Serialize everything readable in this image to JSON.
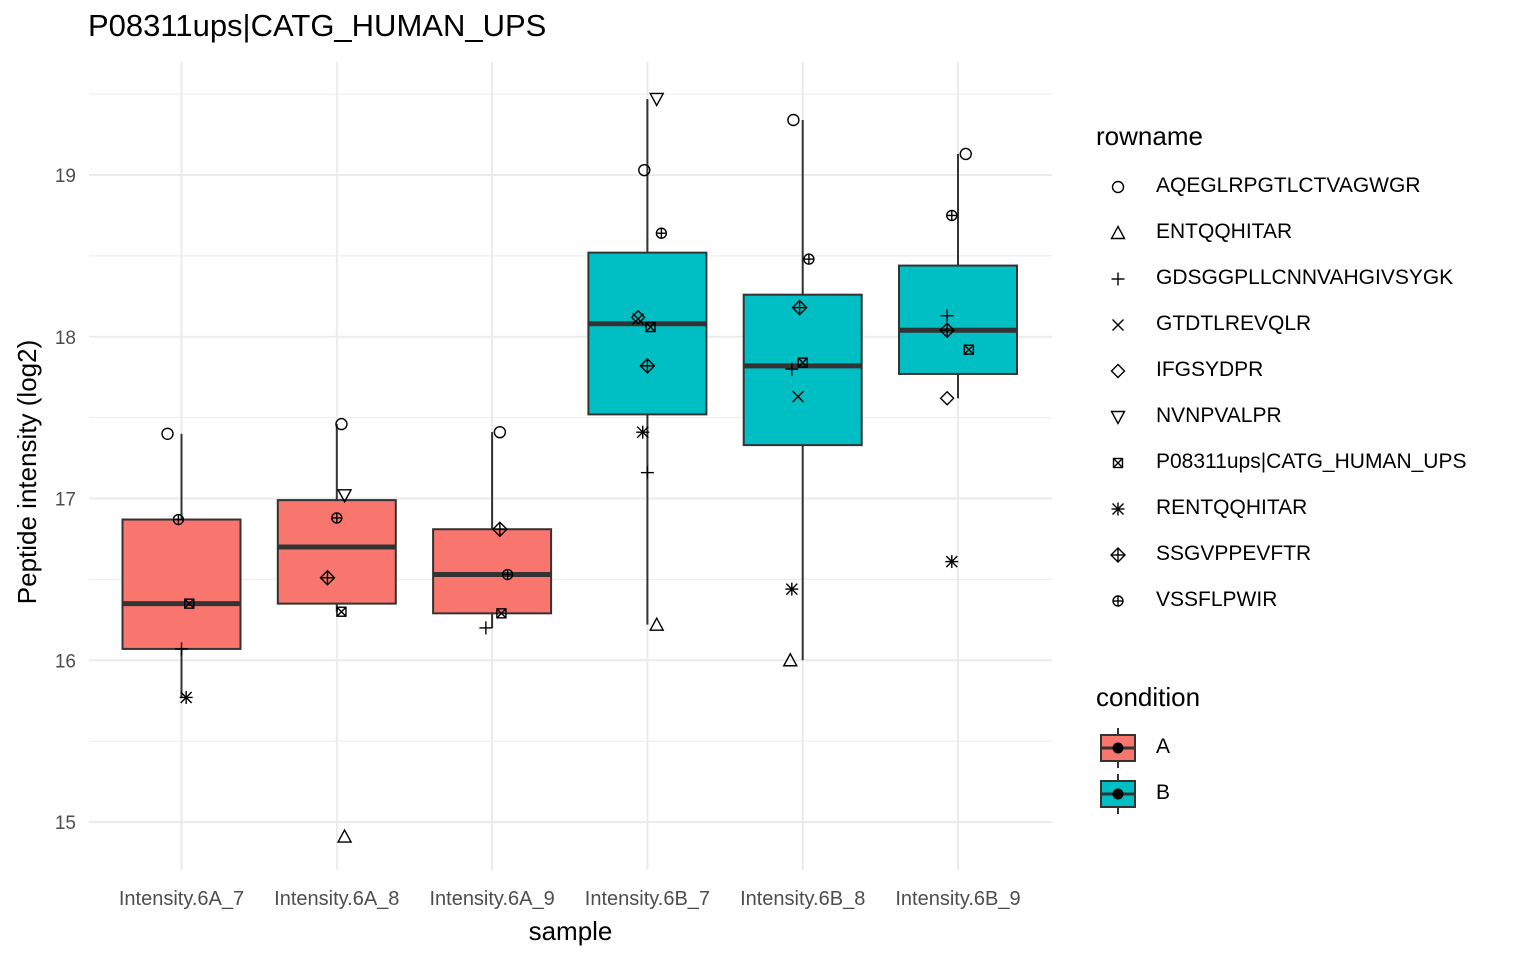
{
  "chart_data": {
    "type": "boxplot",
    "title": "P08311ups|CATG_HUMAN_UPS",
    "xlabel": "sample",
    "ylabel": "Peptide intensity (log2)",
    "ylim": [
      14.7,
      19.7
    ],
    "y_ticks": [
      "15",
      "16",
      "17",
      "18",
      "19"
    ],
    "grid": true,
    "legend_position": "right",
    "categories": [
      "Intensity.6A_7",
      "Intensity.6A_8",
      "Intensity.6A_9",
      "Intensity.6B_7",
      "Intensity.6B_8",
      "Intensity.6B_9"
    ],
    "condition": [
      "A",
      "A",
      "A",
      "B",
      "B",
      "B"
    ],
    "boxes": [
      {
        "whisker_low": 15.77,
        "q1": 16.07,
        "median": 16.35,
        "q3": 16.87,
        "whisker_high": 17.4
      },
      {
        "whisker_low": 16.3,
        "q1": 16.35,
        "median": 16.7,
        "q3": 16.99,
        "whisker_high": 17.46
      },
      {
        "whisker_low": 16.2,
        "q1": 16.29,
        "median": 16.53,
        "q3": 16.81,
        "whisker_high": 17.41
      },
      {
        "whisker_low": 16.22,
        "q1": 17.52,
        "median": 18.08,
        "q3": 18.52,
        "whisker_high": 19.47
      },
      {
        "whisker_low": 16.0,
        "q1": 17.33,
        "median": 17.82,
        "q3": 18.26,
        "whisker_high": 19.34
      },
      {
        "whisker_low": 17.62,
        "q1": 17.77,
        "median": 18.04,
        "q3": 18.44,
        "whisker_high": 19.13
      }
    ],
    "legend_rowname": {
      "title": "rowname",
      "entries": [
        {
          "name": "AQEGLRPGTLCTVAGWGR",
          "shape": "circle"
        },
        {
          "name": "ENTQQHITAR",
          "shape": "triangle-up"
        },
        {
          "name": "GDSGGPLLCNNVAHGIVSYGK",
          "shape": "plus"
        },
        {
          "name": "GTDTLREVQLR",
          "shape": "cross"
        },
        {
          "name": "IFGSYDPR",
          "shape": "diamond"
        },
        {
          "name": "NVNPVALPR",
          "shape": "triangle-down"
        },
        {
          "name": "P08311ups|CATG_HUMAN_UPS",
          "shape": "square-cross"
        },
        {
          "name": "RENTQQHITAR",
          "shape": "asterisk"
        },
        {
          "name": "SSGVPPEVFTR",
          "shape": "diamond-plus"
        },
        {
          "name": "VSSFLPWIR",
          "shape": "circle-plus"
        }
      ]
    },
    "legend_condition": {
      "title": "condition",
      "entries": [
        {
          "name": "A",
          "color": "#F8766D"
        },
        {
          "name": "B",
          "color": "#00BFC4"
        }
      ]
    },
    "points": [
      {
        "sample": 0,
        "dx": -0.09,
        "y": 17.4,
        "shape": "circle"
      },
      {
        "sample": 0,
        "dx": -0.02,
        "y": 16.87,
        "shape": "circle-plus"
      },
      {
        "sample": 0,
        "dx": 0.05,
        "y": 16.35,
        "shape": "square-cross"
      },
      {
        "sample": 0,
        "dx": 0.0,
        "y": 16.07,
        "shape": "plus"
      },
      {
        "sample": 0,
        "dx": 0.03,
        "y": 15.77,
        "shape": "asterisk"
      },
      {
        "sample": 1,
        "dx": 0.03,
        "y": 17.46,
        "shape": "circle"
      },
      {
        "sample": 1,
        "dx": 0.05,
        "y": 17.02,
        "shape": "triangle-down"
      },
      {
        "sample": 1,
        "dx": 0.0,
        "y": 16.88,
        "shape": "circle-plus"
      },
      {
        "sample": 1,
        "dx": -0.06,
        "y": 16.51,
        "shape": "diamond-plus"
      },
      {
        "sample": 1,
        "dx": 0.03,
        "y": 16.3,
        "shape": "square-cross"
      },
      {
        "sample": 1,
        "dx": 0.05,
        "y": 14.91,
        "shape": "triangle-up"
      },
      {
        "sample": 2,
        "dx": 0.05,
        "y": 17.41,
        "shape": "circle"
      },
      {
        "sample": 2,
        "dx": 0.05,
        "y": 16.81,
        "shape": "diamond-plus"
      },
      {
        "sample": 2,
        "dx": 0.1,
        "y": 16.53,
        "shape": "circle-plus"
      },
      {
        "sample": 2,
        "dx": 0.06,
        "y": 16.29,
        "shape": "square-cross"
      },
      {
        "sample": 2,
        "dx": -0.04,
        "y": 16.2,
        "shape": "plus"
      },
      {
        "sample": 3,
        "dx": 0.06,
        "y": 19.47,
        "shape": "triangle-down"
      },
      {
        "sample": 3,
        "dx": -0.02,
        "y": 19.03,
        "shape": "circle"
      },
      {
        "sample": 3,
        "dx": 0.09,
        "y": 18.64,
        "shape": "circle-plus"
      },
      {
        "sample": 3,
        "dx": -0.06,
        "y": 18.11,
        "shape": "cross"
      },
      {
        "sample": 3,
        "dx": -0.06,
        "y": 18.12,
        "shape": "diamond"
      },
      {
        "sample": 3,
        "dx": 0.02,
        "y": 18.06,
        "shape": "square-cross"
      },
      {
        "sample": 3,
        "dx": 0.0,
        "y": 17.82,
        "shape": "diamond-plus"
      },
      {
        "sample": 3,
        "dx": -0.03,
        "y": 17.41,
        "shape": "asterisk"
      },
      {
        "sample": 3,
        "dx": 0.0,
        "y": 17.16,
        "shape": "plus"
      },
      {
        "sample": 3,
        "dx": 0.06,
        "y": 16.22,
        "shape": "triangle-up"
      },
      {
        "sample": 4,
        "dx": -0.06,
        "y": 19.34,
        "shape": "circle"
      },
      {
        "sample": 4,
        "dx": 0.04,
        "y": 18.48,
        "shape": "circle-plus"
      },
      {
        "sample": 4,
        "dx": -0.02,
        "y": 18.18,
        "shape": "diamond-plus"
      },
      {
        "sample": 4,
        "dx": 0.0,
        "y": 17.84,
        "shape": "square-cross"
      },
      {
        "sample": 4,
        "dx": -0.07,
        "y": 17.8,
        "shape": "plus"
      },
      {
        "sample": 4,
        "dx": -0.03,
        "y": 17.63,
        "shape": "cross"
      },
      {
        "sample": 4,
        "dx": -0.07,
        "y": 16.44,
        "shape": "asterisk"
      },
      {
        "sample": 4,
        "dx": -0.08,
        "y": 16.0,
        "shape": "triangle-up"
      },
      {
        "sample": 5,
        "dx": 0.05,
        "y": 19.13,
        "shape": "circle"
      },
      {
        "sample": 5,
        "dx": -0.04,
        "y": 18.75,
        "shape": "circle-plus"
      },
      {
        "sample": 5,
        "dx": -0.07,
        "y": 18.13,
        "shape": "plus"
      },
      {
        "sample": 5,
        "dx": -0.07,
        "y": 18.04,
        "shape": "diamond-plus"
      },
      {
        "sample": 5,
        "dx": 0.07,
        "y": 17.92,
        "shape": "square-cross"
      },
      {
        "sample": 5,
        "dx": -0.07,
        "y": 17.62,
        "shape": "diamond"
      },
      {
        "sample": 5,
        "dx": -0.04,
        "y": 16.61,
        "shape": "asterisk"
      }
    ]
  }
}
